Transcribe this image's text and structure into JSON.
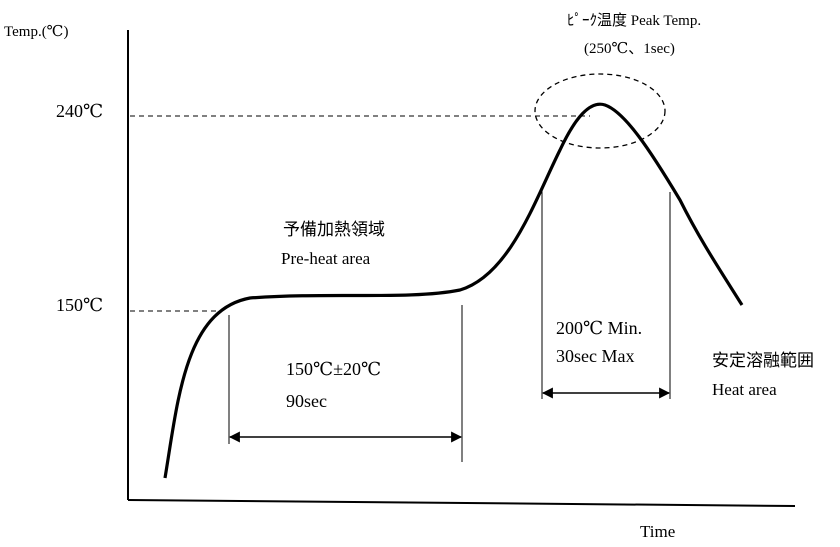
{
  "axes": {
    "y_label": "Temp.(℃)",
    "x_label": "Time"
  },
  "levels": {
    "t240": "240℃",
    "t150": "150℃"
  },
  "peak": {
    "label_jp": "ﾋﾟｰｸ温度  Peak Temp.",
    "label_detail": "(250℃、1sec)"
  },
  "preheat": {
    "label_jp": "予備加熱領域",
    "label_en": "Pre-heat area",
    "spec_temp": "150℃±20℃",
    "spec_time": "90sec"
  },
  "reflow": {
    "spec_temp": "200℃  Min.",
    "spec_time": "30sec Max",
    "label_jp": "安定溶融範囲",
    "label_en": "Heat area"
  }
}
